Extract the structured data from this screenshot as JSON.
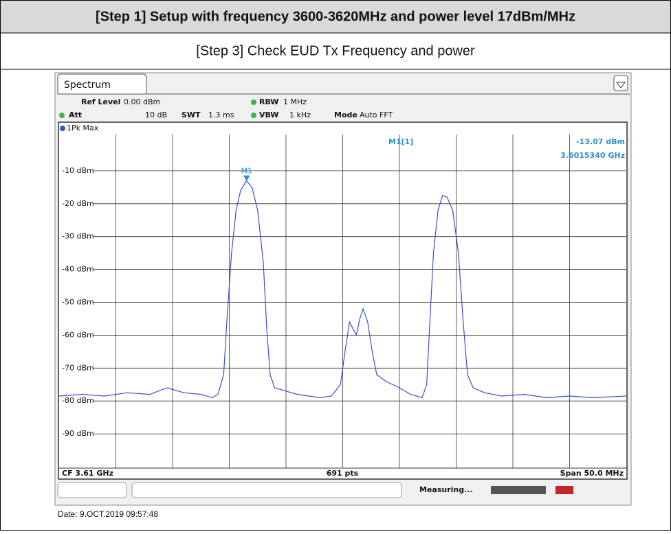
{
  "header": {
    "title": "[Step 1] Setup with frequency 3600-3620MHz and power level 17dBm/MHz",
    "subtitle": "[Step 3] Check EUD Tx Frequency and power"
  },
  "screen": {
    "tab": "Spectrum",
    "settings": {
      "ref_level_label": "Ref Level",
      "ref_level": "0.00 dBm",
      "att_label": "Att",
      "att": "10 dB",
      "swt_label": "SWT",
      "swt": "1.3 ms",
      "rbw_label": "RBW",
      "rbw": "1 MHz",
      "vbw_label": "VBW",
      "vbw": "1 kHz",
      "mode_label": "Mode",
      "mode": "Auto FFT"
    },
    "trace_label": "1Pk Max",
    "footer": {
      "center_freq": "CF 3.61 GHz",
      "points": "691 pts",
      "span": "Span 50.0 MHz"
    },
    "status": "Measuring..."
  },
  "date": "Date: 9.OCT.2019 09:57:48",
  "chart_data": {
    "type": "line",
    "x": [
      3585.0,
      3587,
      3589,
      3591,
      3593,
      3594.5,
      3596,
      3597.5,
      3598.5,
      3599.0,
      3599.5,
      3599.8,
      3600.2,
      3600.6,
      3601.0,
      3601.5,
      3602.0,
      3602.5,
      3603.0,
      3603.3,
      3603.6,
      3604.0,
      3605,
      3606,
      3607,
      3608,
      3609,
      3609.8,
      3610.2,
      3610.6,
      3610.9,
      3611.2,
      3611.5,
      3611.8,
      3612.2,
      3612.6,
      3613.0,
      3613.8,
      3615,
      3616,
      3617,
      3617.4,
      3617.7,
      3618.0,
      3618.4,
      3618.8,
      3619.2,
      3619.7,
      3620.2,
      3620.6,
      3621.0,
      3621.5,
      3622.5,
      3624,
      3626,
      3628,
      3630,
      3632,
      3635
    ],
    "series": [
      {
        "name": "1Pk Max",
        "color": "#3a4ccf",
        "values": [
          -78.5,
          -78,
          -78.5,
          -77.5,
          -78,
          -76,
          -77.5,
          -78,
          -79,
          -78,
          -72,
          -55,
          -35,
          -22,
          -16,
          -13,
          -15,
          -22,
          -38,
          -58,
          -72,
          -76,
          -77,
          -78,
          -78.5,
          -79,
          -78.5,
          -75,
          -65,
          -56,
          -58,
          -60,
          -55,
          -52,
          -56,
          -65,
          -72,
          -74,
          -76,
          -78,
          -79,
          -75,
          -55,
          -35,
          -22,
          -17.5,
          -18,
          -22,
          -35,
          -55,
          -72,
          -76,
          -77.5,
          -78.5,
          -78,
          -79,
          -78.5,
          -79,
          -78.5
        ]
      }
    ],
    "markers": [
      {
        "name": "M1",
        "header": "M1[1]",
        "x": 3601.534,
        "x_label": "3.6015340 GHz",
        "value": -13.07,
        "value_label": "-13.07 dBm"
      }
    ],
    "xlim": [
      3585,
      3635
    ],
    "ylim": [
      -100,
      0
    ],
    "yticks": [
      {
        "value": -10,
        "label": "-10 dBm"
      },
      {
        "value": -20,
        "label": "-20 dBm"
      },
      {
        "value": -30,
        "label": "-30 dBm"
      },
      {
        "value": -40,
        "label": "-40 dBm"
      },
      {
        "value": -50,
        "label": "-50 dBm"
      },
      {
        "value": -60,
        "label": "-60 dBm"
      },
      {
        "value": -70,
        "label": "-70 dBm"
      },
      {
        "value": -80,
        "label": "-80 dBm"
      },
      {
        "value": -90,
        "label": "-90 dBm"
      }
    ],
    "grid": true
  }
}
